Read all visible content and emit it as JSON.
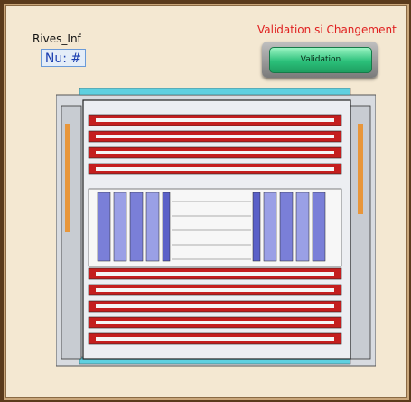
{
  "header": {
    "title": "Rives_Inf",
    "nu_label": "Nu: #"
  },
  "validation": {
    "heading": "Validation si Changement",
    "button_label": "Validation"
  },
  "colors": {
    "red_bar": "#c41e1e",
    "blue_block": "#7a7fd8",
    "frame_grey": "#b8bcc4",
    "cyan_edge": "#5fd0e0"
  }
}
